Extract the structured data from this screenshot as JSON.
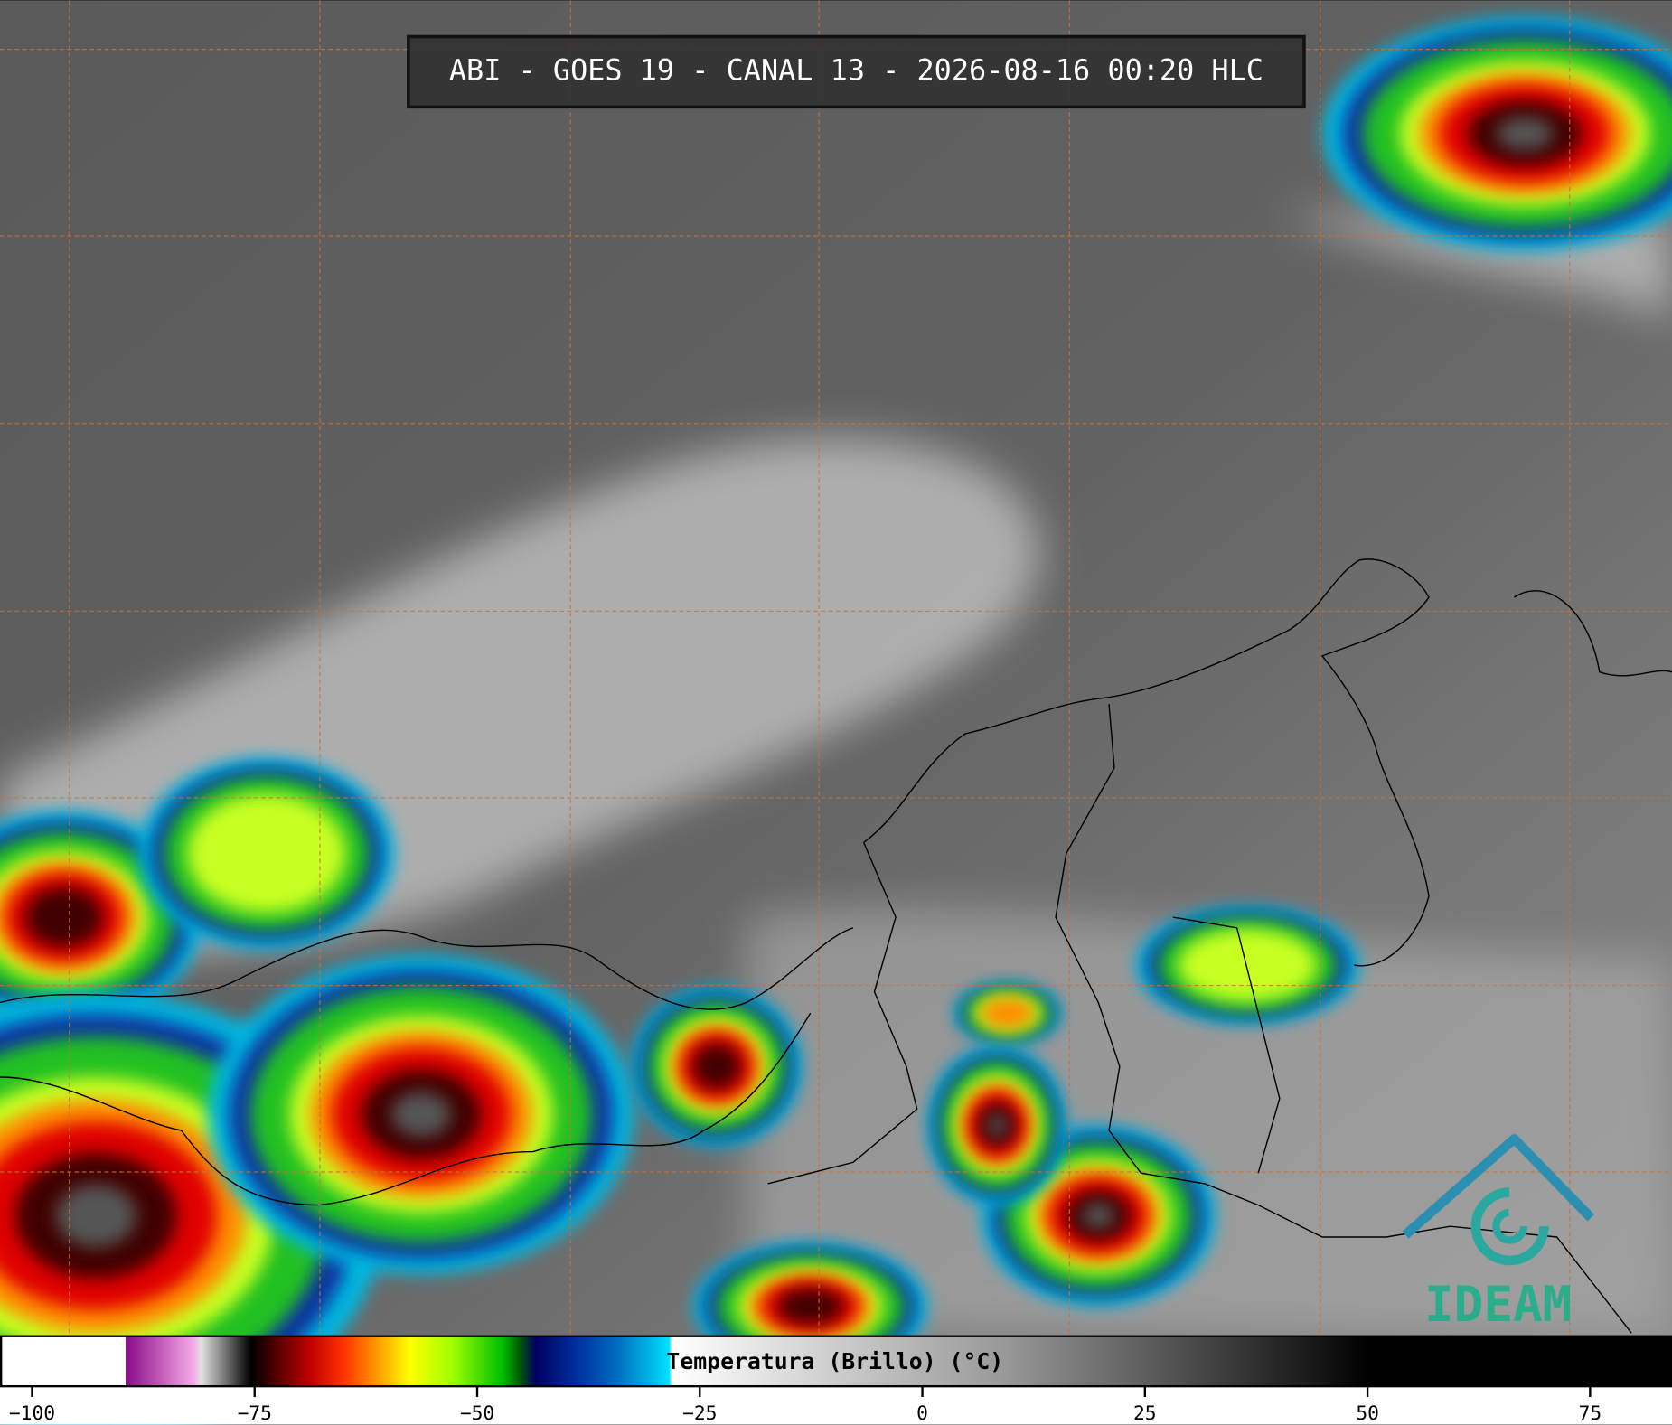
{
  "header": {
    "title": "ABI - GOES 19 - CANAL 13 - 2026-08-16 00:20 HLC"
  },
  "colorbar": {
    "label": "Temperatura (Brillo) (°C)",
    "clim": [
      -103.6,
      84.2
    ],
    "ticks": [
      {
        "value": -100,
        "label": "−100"
      },
      {
        "value": -75,
        "label": "−75"
      },
      {
        "value": -50,
        "label": "−50"
      },
      {
        "value": -25,
        "label": "−25"
      },
      0,
      25,
      50,
      75
    ]
  },
  "logo": {
    "text": "IDEAM"
  }
}
